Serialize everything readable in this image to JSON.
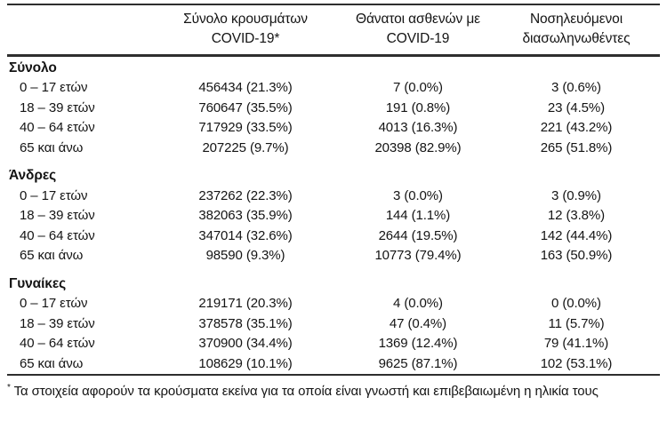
{
  "table": {
    "header": {
      "columns": [
        {
          "line1": "Σύνολο κρουσμάτων",
          "line2": "COVID-19*"
        },
        {
          "line1": "Θάνατοι ασθενών με",
          "line2": "COVID-19"
        },
        {
          "line1": "Νοσηλευόμενοι",
          "line2": "διασωληνωθέντες"
        }
      ]
    },
    "sections": [
      {
        "label": "Σύνολο",
        "rows": [
          {
            "age": "0 – 17 ετών",
            "cases": "456434 (21.3%)",
            "deaths": "7 (0.0%)",
            "intubated": "3 (0.6%)"
          },
          {
            "age": "18 – 39 ετών",
            "cases": "760647 (35.5%)",
            "deaths": "191 (0.8%)",
            "intubated": "23 (4.5%)"
          },
          {
            "age": "40 – 64 ετών",
            "cases": "717929 (33.5%)",
            "deaths": "4013 (16.3%)",
            "intubated": "221 (43.2%)"
          },
          {
            "age": "65 και άνω",
            "cases": "207225 (9.7%)",
            "deaths": "20398 (82.9%)",
            "intubated": "265 (51.8%)"
          }
        ]
      },
      {
        "label": "Άνδρες",
        "rows": [
          {
            "age": "0 – 17 ετών",
            "cases": "237262 (22.3%)",
            "deaths": "3 (0.0%)",
            "intubated": "3 (0.9%)"
          },
          {
            "age": "18 – 39 ετών",
            "cases": "382063 (35.9%)",
            "deaths": "144 (1.1%)",
            "intubated": "12 (3.8%)"
          },
          {
            "age": "40 – 64 ετών",
            "cases": "347014 (32.6%)",
            "deaths": "2644 (19.5%)",
            "intubated": "142 (44.4%)"
          },
          {
            "age": "65 και άνω",
            "cases": "98590 (9.3%)",
            "deaths": "10773 (79.4%)",
            "intubated": "163 (50.9%)"
          }
        ]
      },
      {
        "label": "Γυναίκες",
        "rows": [
          {
            "age": "0 – 17 ετών",
            "cases": "219171 (20.3%)",
            "deaths": "4 (0.0%)",
            "intubated": "0 (0.0%)"
          },
          {
            "age": "18 – 39 ετών",
            "cases": "378578 (35.1%)",
            "deaths": "47 (0.4%)",
            "intubated": "11 (5.7%)"
          },
          {
            "age": "40 – 64 ετών",
            "cases": "370900 (34.4%)",
            "deaths": "1369 (12.4%)",
            "intubated": "79 (41.1%)"
          },
          {
            "age": "65 και άνω",
            "cases": "108629 (10.1%)",
            "deaths": "9625 (87.1%)",
            "intubated": "102 (53.1%)"
          }
        ]
      }
    ],
    "footnote": {
      "marker": "*",
      "text": "Τα στοιχεία αφορούν τα κρούσματα εκείνα για τα οποία είναι γνωστή και επιβεβαιωμένη η ηλικία τους"
    }
  }
}
